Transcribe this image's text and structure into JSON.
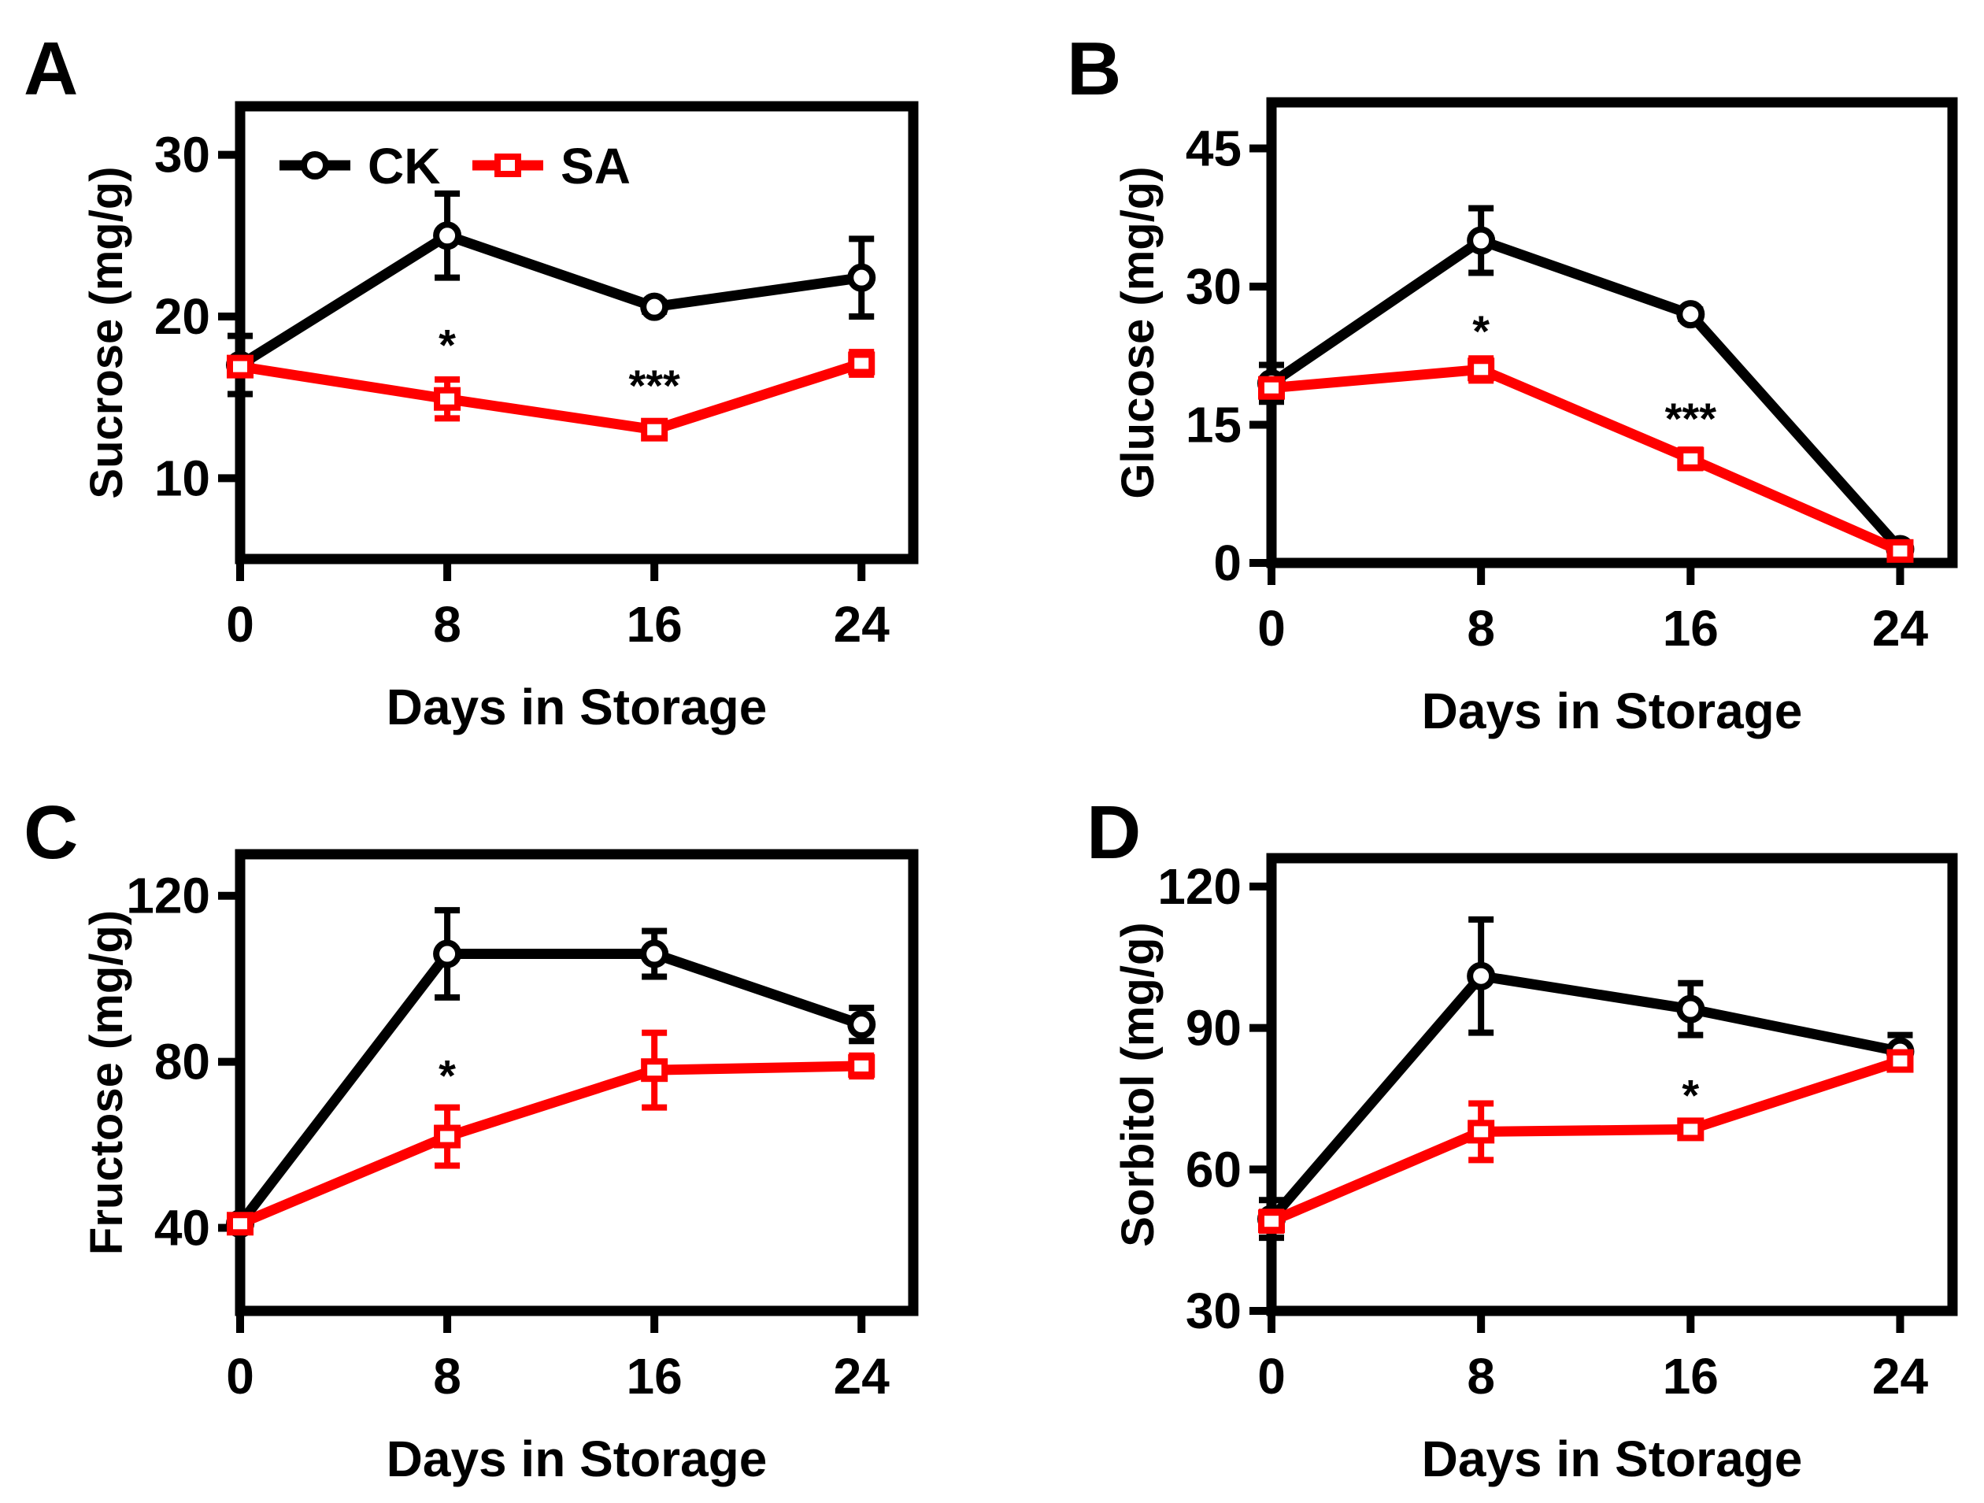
{
  "figure": {
    "legend": {
      "entries": [
        {
          "name": "CK",
          "color": "#000000",
          "marker": "circle"
        },
        {
          "name": "SA",
          "color": "#ff0000",
          "marker": "square"
        }
      ]
    }
  },
  "chart_data": [
    {
      "panel": "A",
      "type": "line",
      "ylabel": "Sucrose (mg/g)",
      "xlabel": "Days in Storage",
      "x": [
        0,
        8,
        16,
        24
      ],
      "xlim": [
        0,
        26
      ],
      "ylim": [
        5,
        33
      ],
      "yticks": [
        10,
        20,
        30
      ],
      "xticks": [
        0,
        8,
        16,
        24
      ],
      "legend_position": "top-left",
      "series": [
        {
          "name": "CK",
          "color": "#000000",
          "marker": "circle",
          "values": [
            17.0,
            25.0,
            20.6,
            22.4
          ],
          "errors": [
            1.8,
            2.6,
            0.3,
            2.4
          ]
        },
        {
          "name": "SA",
          "color": "#ff0000",
          "marker": "square",
          "values": [
            16.9,
            14.9,
            13.0,
            17.1
          ],
          "errors": [
            0.4,
            1.2,
            0.5,
            0.7
          ]
        }
      ],
      "annotations": [
        {
          "x": 8,
          "y": 17.3,
          "text": "*"
        },
        {
          "x": 16,
          "y": 14.8,
          "text": "***"
        }
      ]
    },
    {
      "panel": "B",
      "type": "line",
      "ylabel": "Glucose (mg/g)",
      "xlabel": "Days in Storage",
      "x": [
        0,
        8,
        16,
        24
      ],
      "xlim": [
        0,
        26
      ],
      "ylim": [
        0,
        50
      ],
      "yticks": [
        0,
        15,
        30,
        45
      ],
      "xticks": [
        0,
        8,
        16,
        24
      ],
      "series": [
        {
          "name": "CK",
          "color": "#000000",
          "marker": "circle",
          "values": [
            19.5,
            35.0,
            27.0,
            1.5
          ],
          "errors": [
            2.0,
            3.5,
            0.5,
            0.3
          ]
        },
        {
          "name": "SA",
          "color": "#ff0000",
          "marker": "square",
          "values": [
            19.0,
            21.0,
            11.3,
            1.3
          ],
          "errors": [
            0.7,
            1.2,
            1.0,
            0.3
          ]
        }
      ],
      "annotations": [
        {
          "x": 8,
          "y": 23.5,
          "text": "*"
        },
        {
          "x": 16,
          "y": 14.0,
          "text": "***"
        }
      ]
    },
    {
      "panel": "C",
      "type": "line",
      "ylabel": "Fructose (mg/g)",
      "xlabel": "Days in Storage",
      "x": [
        0,
        8,
        16,
        24
      ],
      "xlim": [
        0,
        26
      ],
      "ylim": [
        20,
        130
      ],
      "yticks": [
        40,
        80,
        120
      ],
      "xticks": [
        0,
        8,
        16,
        24
      ],
      "series": [
        {
          "name": "CK",
          "color": "#000000",
          "marker": "circle",
          "values": [
            41,
            106,
            106,
            89
          ],
          "errors": [
            1.0,
            10.5,
            5.5,
            4.0
          ]
        },
        {
          "name": "SA",
          "color": "#ff0000",
          "marker": "square",
          "values": [
            41,
            62,
            78,
            79
          ],
          "errors": [
            1.0,
            7.0,
            9.0,
            2.5
          ]
        }
      ],
      "annotations": [
        {
          "x": 8,
          "y": 73,
          "text": "*"
        }
      ]
    },
    {
      "panel": "D",
      "type": "line",
      "ylabel": "Sorbitol  (mg/g)",
      "xlabel": "Days in Storage",
      "x": [
        0,
        8,
        16,
        24
      ],
      "xlim": [
        0,
        26
      ],
      "ylim": [
        30,
        126
      ],
      "yticks": [
        30,
        60,
        90,
        120
      ],
      "xticks": [
        0,
        8,
        16,
        24
      ],
      "series": [
        {
          "name": "CK",
          "color": "#000000",
          "marker": "circle",
          "values": [
            49.5,
            101,
            94,
            85
          ],
          "errors": [
            4.0,
            12.0,
            5.5,
            3.5
          ]
        },
        {
          "name": "SA",
          "color": "#ff0000",
          "marker": "square",
          "values": [
            49,
            68,
            68.5,
            83
          ],
          "errors": [
            2.0,
            6.0,
            1.5,
            1.5
          ]
        }
      ],
      "annotations": [
        {
          "x": 16,
          "y": 72.5,
          "text": "*"
        }
      ]
    }
  ]
}
